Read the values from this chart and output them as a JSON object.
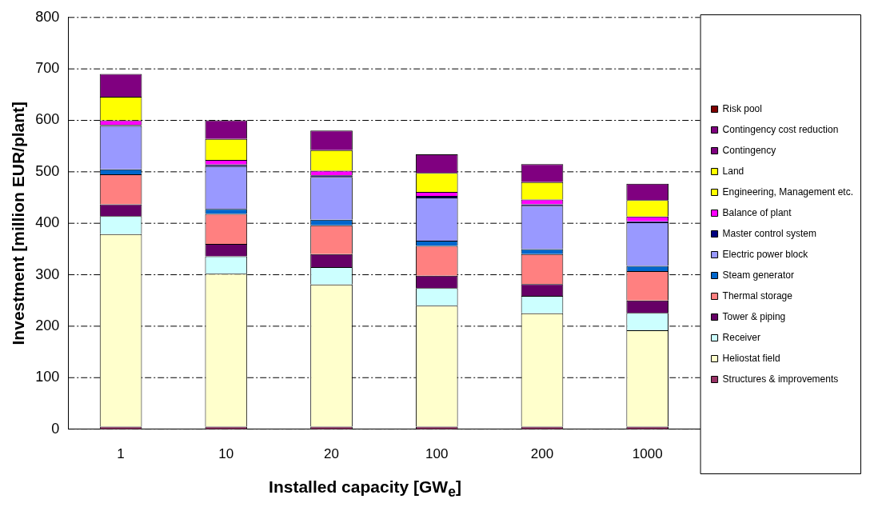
{
  "chart_data": {
    "type": "bar",
    "stacked": true,
    "xlabel": "Installed capacity [GW$_{e}$]",
    "ylabel": "Investment [million EUR/plant]",
    "categories": [
      "1",
      "10",
      "20",
      "100",
      "200",
      "1000"
    ],
    "ylim": [
      0,
      800
    ],
    "yticks": [
      0,
      100,
      200,
      300,
      400,
      500,
      600,
      700,
      800
    ],
    "grid": "y",
    "legend": "right",
    "series": [
      {
        "name": "Structures & improvements",
        "color": "#993366",
        "values": [
          5,
          5,
          5,
          5,
          5,
          5
        ]
      },
      {
        "name": "Heliostat field",
        "color": "#ffffcc",
        "values": [
          374,
          297,
          276,
          235,
          220,
          187
        ]
      },
      {
        "name": "Receiver",
        "color": "#ccffff",
        "values": [
          35,
          34,
          34,
          34,
          34,
          34
        ]
      },
      {
        "name": "Tower & piping",
        "color": "#660066",
        "values": [
          23,
          24,
          25,
          24,
          23,
          24
        ]
      },
      {
        "name": "Thermal storage",
        "color": "#ff8080",
        "values": [
          58,
          58,
          56,
          58,
          58,
          57
        ]
      },
      {
        "name": "Steam generator",
        "color": "#0066cc",
        "values": [
          10,
          10,
          11,
          10,
          10,
          10
        ]
      },
      {
        "name": "Electric power block",
        "color": "#9999ff",
        "values": [
          84,
          83,
          83,
          84,
          84,
          85
        ]
      },
      {
        "name": "Master control system",
        "color": "#000080",
        "values": [
          2,
          3,
          3,
          3,
          3,
          2
        ]
      },
      {
        "name": "Balance of plant",
        "color": "#ff00ff",
        "values": [
          9,
          9,
          9,
          8,
          9,
          9
        ]
      },
      {
        "name": "Engineering, Management etc.",
        "color": "#ffff00",
        "values": [
          46,
          41,
          40,
          37,
          34,
          32
        ]
      },
      {
        "name": "Land",
        "color": "#ffff00",
        "values": [
          0,
          0,
          0,
          0,
          0,
          0
        ]
      },
      {
        "name": "Contingency",
        "color": "#800080",
        "values": [
          44,
          36,
          38,
          36,
          35,
          32
        ]
      },
      {
        "name": "Contingency cost reduction",
        "color": "#800080",
        "values": [
          0,
          0,
          0,
          0,
          0,
          0
        ]
      },
      {
        "name": "Risk pool",
        "color": "#800000",
        "values": [
          0,
          0,
          0,
          0,
          0,
          0
        ]
      }
    ]
  }
}
